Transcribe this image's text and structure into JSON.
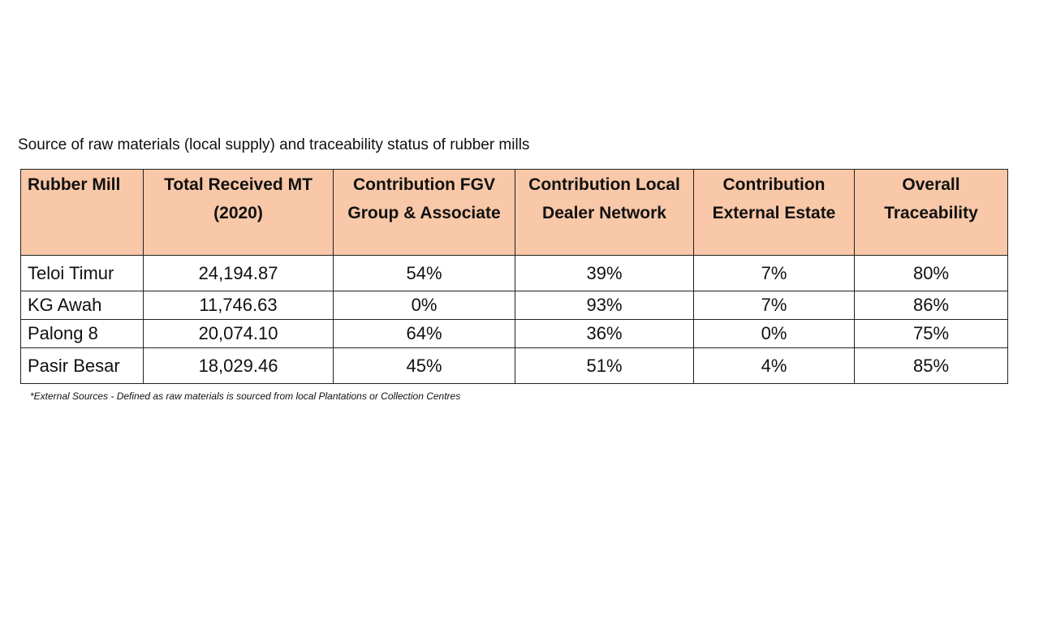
{
  "caption": "Source of raw materials (local supply) and traceability status of rubber mills",
  "table": {
    "headers": [
      "Rubber Mill",
      "Total Received MT (2020)",
      "Contribution FGV Group & Associate",
      "Contribution Local Dealer Network",
      "Contribution External Estate",
      "Overall Traceability"
    ],
    "rows": [
      [
        "Teloi Timur",
        "24,194.87",
        "54%",
        "39%",
        "7%",
        "80%"
      ],
      [
        "KG Awah",
        "11,746.63",
        "0%",
        "93%",
        "7%",
        "86%"
      ],
      [
        "Palong 8",
        "20,074.10",
        "64%",
        "36%",
        "0%",
        "75%"
      ],
      [
        "Pasir Besar",
        "18,029.46",
        "45%",
        "51%",
        "4%",
        "85%"
      ]
    ],
    "header_color": "#f8c8a8"
  },
  "footnote": "*External Sources - Defined as raw materials is sourced from local Plantations or Collection Centres"
}
